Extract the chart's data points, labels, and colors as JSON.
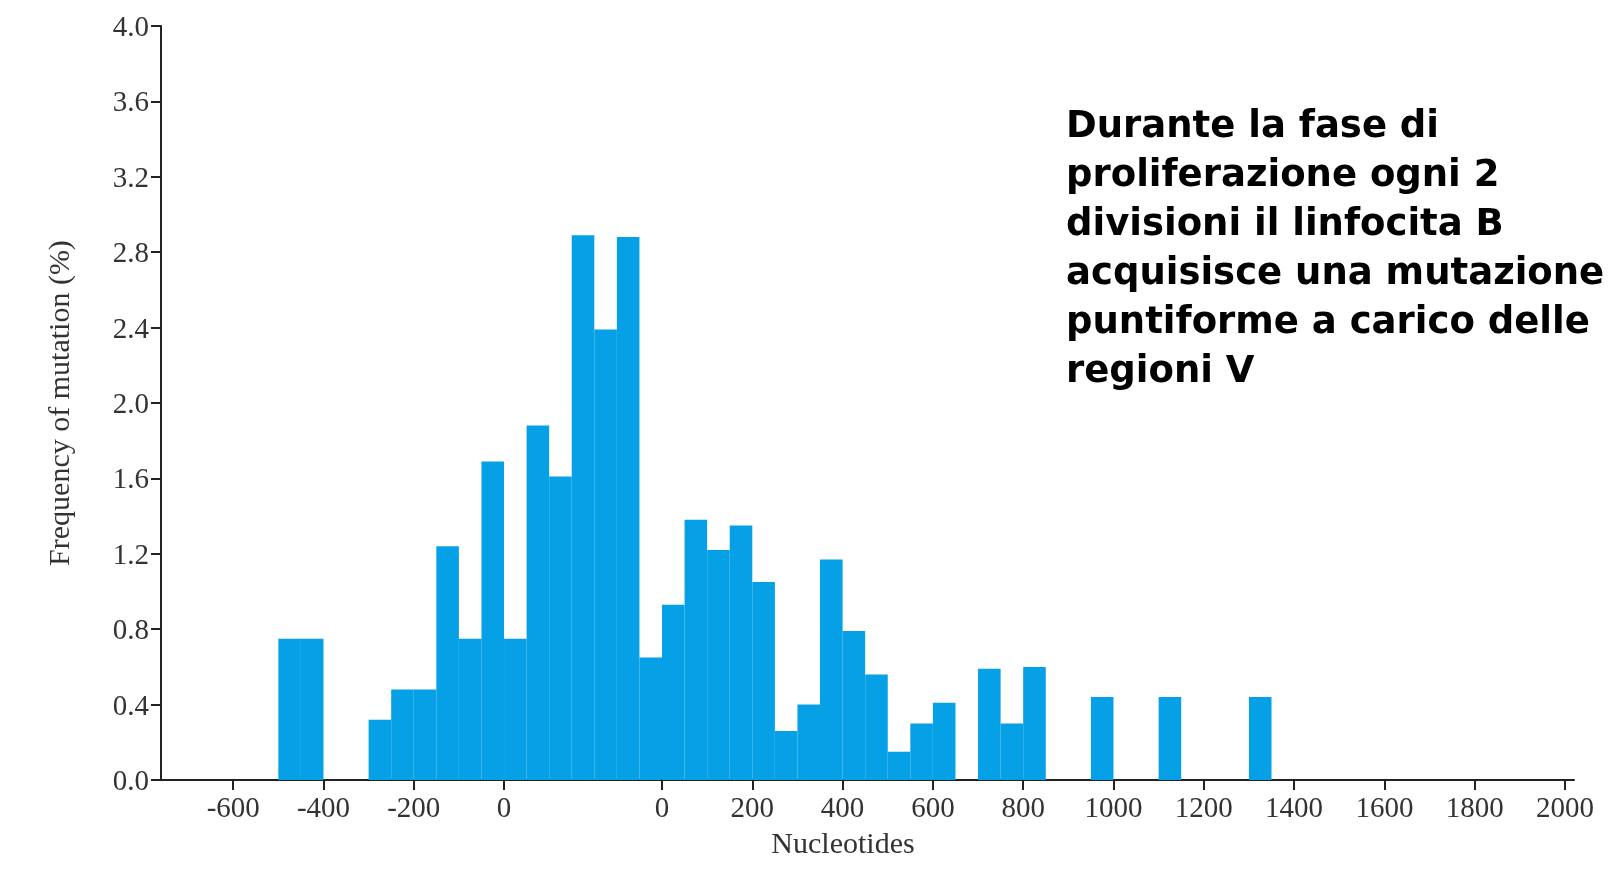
{
  "chart_data": [
    {
      "type": "histogram",
      "ylabel": "Frequency of mutation (%)",
      "bins": [
        -500,
        -450,
        -400,
        -350,
        -300,
        -250,
        -200,
        -150,
        -100,
        -50,
        0,
        50,
        100,
        150,
        200,
        250,
        300,
        350
      ],
      "values": [
        0.75,
        0.75,
        0,
        0,
        0.32,
        0.48,
        0.48,
        1.24,
        0.75,
        1.69,
        0.75,
        1.88,
        1.61,
        2.89,
        2.39,
        2.88,
        0.65
      ],
      "color": "#06a0e6",
      "xlim": [
        -760,
        350
      ],
      "xticks": [
        -600,
        -400,
        -200,
        0
      ],
      "ylim": [
        0,
        4
      ],
      "yticks": [
        {
          "value": 0,
          "label": "0.0"
        },
        0.4,
        0.8,
        1.2,
        1.6,
        {
          "value": 2,
          "label": "2.0"
        },
        2.4,
        2.8,
        3.2,
        3.6,
        {
          "value": 4,
          "label": "4.0"
        }
      ],
      "grid": false
    },
    {
      "type": "histogram",
      "xlabel": "Nucleotides",
      "annotations": [
        "Durante la fase di proliferazione ogni 2 divisioni il linfocita B acquisisce una mutazione puntiforme a carico delle regioni V"
      ],
      "bins": [
        0,
        50,
        100,
        150,
        200,
        250,
        300,
        350,
        400,
        450,
        500,
        550,
        600,
        650,
        700,
        750,
        800,
        850,
        900,
        950,
        1000,
        1050,
        1100,
        1150,
        1200,
        1250,
        1300,
        1350
      ],
      "values": [
        0.93,
        1.38,
        1.22,
        1.35,
        1.05,
        0.26,
        0.4,
        1.17,
        0.79,
        0.56,
        0.15,
        0.3,
        0.41,
        0,
        0.59,
        0.3,
        0.6,
        0,
        0,
        0.44,
        0,
        0,
        0.44,
        0,
        0,
        0,
        0.44
      ],
      "color": "#06a0e6",
      "xlim": [
        0,
        2020
      ],
      "xticks": [
        0,
        200,
        400,
        600,
        800,
        1000,
        1200,
        1400,
        1600,
        1800,
        2000
      ],
      "ylim": [
        0,
        4
      ],
      "tick_labels": "x",
      "grid": false
    }
  ]
}
